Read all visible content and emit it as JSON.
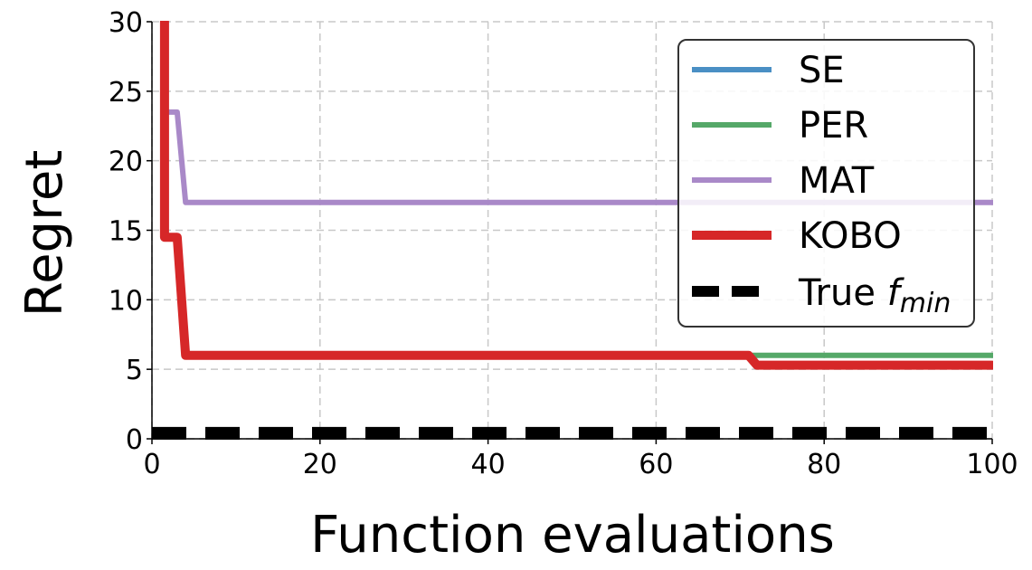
{
  "chart_data": {
    "type": "line",
    "title": "",
    "xlabel": "Function evaluations",
    "ylabel": "Regret",
    "xlim": [
      0,
      100
    ],
    "ylim": [
      0,
      30
    ],
    "x_ticks": [
      0,
      20,
      40,
      60,
      80,
      100
    ],
    "y_ticks": [
      0,
      5,
      10,
      15,
      20,
      25,
      30
    ],
    "grid": true,
    "legend_position": "top-right",
    "series": [
      {
        "name": "SE",
        "color": "#4a8fc4",
        "points": [
          [
            1.5,
            30
          ],
          [
            1.5,
            14.5
          ],
          [
            3,
            14.5
          ],
          [
            4,
            6
          ],
          [
            71,
            6
          ],
          [
            72,
            5.3
          ],
          [
            100,
            5.3
          ]
        ]
      },
      {
        "name": "PER",
        "color": "#55a868",
        "points": [
          [
            1.5,
            30
          ],
          [
            1.5,
            14.5
          ],
          [
            3,
            14.5
          ],
          [
            4,
            6
          ],
          [
            100,
            6
          ]
        ]
      },
      {
        "name": "MAT",
        "color": "#a989c8",
        "points": [
          [
            2,
            23.5
          ],
          [
            3,
            23.5
          ],
          [
            4,
            17
          ],
          [
            100,
            17
          ]
        ]
      },
      {
        "name": "KOBO",
        "color": "#d62728",
        "points": [
          [
            1.5,
            30
          ],
          [
            1.5,
            14.5
          ],
          [
            3,
            14.5
          ],
          [
            4,
            6
          ],
          [
            71,
            6
          ],
          [
            72,
            5.3
          ],
          [
            100,
            5.3
          ]
        ]
      },
      {
        "name": "True f_min",
        "color": "#000000",
        "dashed": true,
        "points": [
          [
            0,
            0.4
          ],
          [
            100,
            0.4
          ]
        ]
      }
    ]
  },
  "legend": {
    "items": [
      {
        "label": "SE",
        "color": "#4a8fc4"
      },
      {
        "label": "PER",
        "color": "#55a868"
      },
      {
        "label": "MAT",
        "color": "#a989c8"
      },
      {
        "label": "KOBO",
        "color": "#d62728"
      },
      {
        "label_main": "True ",
        "label_var": "f",
        "label_sub": "min",
        "color": "#000000"
      }
    ]
  }
}
